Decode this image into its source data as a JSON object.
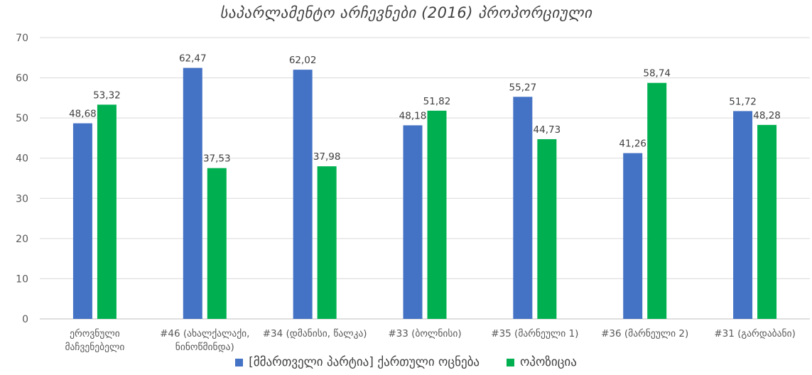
{
  "chart_data": {
    "type": "bar",
    "title": "საპარლამენტო არჩევნები (2016) პროპორციული",
    "xlabel": "",
    "ylabel": "",
    "ylim": [
      0,
      70
    ],
    "yticks": [
      "0",
      "10",
      "20",
      "30",
      "40",
      "50",
      "60",
      "70"
    ],
    "grid": true,
    "legend_position": "bottom",
    "categories": [
      [
        "ეროვნული",
        "მაჩვენებელი"
      ],
      [
        "#46 (ახალქალაქი,",
        "ნინოწმინდა)"
      ],
      [
        "#34  (დმანისი, წალკა)"
      ],
      [
        "#33 (ბოლნისი)"
      ],
      [
        "#35 (მარნეული 1)"
      ],
      [
        "#36 (მარნეული 2)"
      ],
      [
        "#31 (გარდაბანი)"
      ]
    ],
    "series": [
      {
        "name": "[მმართველი პარტია] ქართული ოცნება",
        "color": "#4472C4",
        "values": [
          48.68,
          62.47,
          62.02,
          48.18,
          55.27,
          41.26,
          51.72
        ],
        "labels": [
          "48,68",
          "62,47",
          "62,02",
          "48,18",
          "55,27",
          "41,26",
          "51,72"
        ]
      },
      {
        "name": "ოპოზიცია",
        "color": "#00B050",
        "values": [
          53.32,
          37.53,
          37.98,
          51.82,
          44.73,
          58.74,
          48.28
        ],
        "labels": [
          "53,32",
          "37,53",
          "37,98",
          "51,82",
          "44,73",
          "58,74",
          "48,28"
        ]
      }
    ]
  },
  "colors": {
    "grid": "#D9D9D9",
    "axis": "#BFBFBF"
  }
}
